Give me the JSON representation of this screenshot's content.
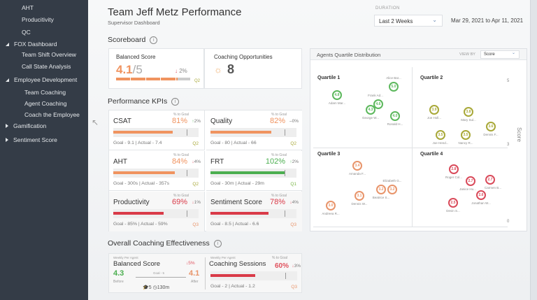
{
  "sidebar": {
    "items": [
      {
        "label": "AHT",
        "level": 2
      },
      {
        "label": "Producitivity",
        "level": 2
      },
      {
        "label": "QC",
        "level": 2
      },
      {
        "label": "FOX Dashboard",
        "level": 1,
        "state": "expanded"
      },
      {
        "label": "Team Shift Overview",
        "level": 2
      },
      {
        "label": "Call State Analysis",
        "level": 2
      },
      {
        "label": "Employee Development",
        "level": 1,
        "state": "expanded"
      },
      {
        "label": "Team Coaching",
        "level": 2
      },
      {
        "label": "Agent Coaching",
        "level": 2
      },
      {
        "label": "Coach the Employee",
        "level": 2
      },
      {
        "label": "Gamification",
        "level": 1,
        "state": "collapsed"
      },
      {
        "label": "Sentiment Score",
        "level": 1,
        "state": "collapsed"
      }
    ]
  },
  "header": {
    "title": "Team Jeff Metz Performance",
    "subtitle": "Supervisor Dashboard",
    "duration_label": "DURATION",
    "duration_value": "Last 2 Weeks",
    "date_range": "Mar 29, 2021 to  Apr 11, 2021"
  },
  "scoreboard": {
    "title": "Scoreboard",
    "info": "i",
    "balanced": {
      "label": "Balanced Score",
      "value": "4.1",
      "max": "/5",
      "change": "2%",
      "direction": "down",
      "quartile": "Q2",
      "score": 4.1,
      "out_of": 5
    },
    "coaching": {
      "label": "Coaching Opportunities",
      "value": "8",
      "icon": "lightbulb-icon"
    }
  },
  "kpis": {
    "title": "Performance KPIs",
    "info": "i",
    "pct_label": "% to Goal",
    "items": [
      {
        "name": "CSAT",
        "pct": "81%",
        "percent": 81,
        "change": "2%",
        "direction": "up",
        "goal_text": "Goal - 9.1 | Actual - 7.4",
        "quartile": "Q2",
        "color": "#f0935f"
      },
      {
        "name": "Quality",
        "pct": "82%",
        "percent": 82,
        "change": "0%",
        "direction": "flat",
        "goal_text": "Goal - 80 | Actual - 66",
        "quartile": "Q2",
        "color": "#f0935f"
      },
      {
        "name": "AHT",
        "pct": "84%",
        "percent": 84,
        "change": "4%",
        "direction": "down",
        "goal_text": "Goal - 300s | Actual - 357s",
        "quartile": "Q2",
        "color": "#f0935f"
      },
      {
        "name": "FRT",
        "pct": "102%",
        "percent": 102,
        "change": "2%",
        "direction": "up",
        "goal_text": "Goal - 30m | Actual - 29m",
        "quartile": "Q1",
        "color": "#4caf50"
      },
      {
        "name": "Productivity",
        "pct": "69%",
        "percent": 69,
        "change": "1%",
        "direction": "down",
        "goal_text": "Goal - 85% | Actual - 59%",
        "quartile": "Q3",
        "color": "#d93a48"
      },
      {
        "name": "Sentiment Score",
        "pct": "78%",
        "percent": 78,
        "change": "4%",
        "direction": "down",
        "goal_text": "Goal - 8.5 | Actual - 6.6",
        "quartile": "Q3",
        "color": "#d93a48"
      }
    ]
  },
  "coaching_effectiveness": {
    "title": "Overall Coaching Effectiveness",
    "info": "i",
    "balanced": {
      "caption": "Weekly Per Agent",
      "label": "Balanced Score",
      "change": "5%",
      "direction": "down",
      "before": "4.3",
      "before_label": "Before",
      "after": "4.1",
      "after_label": "After",
      "goal": "Goal - 5",
      "sessions": "5",
      "duration": "130m"
    },
    "sessions": {
      "caption": "Weekly Per Agent",
      "label": "Coaching Sessions",
      "pct_label": "% to Goal",
      "pct": "60%",
      "percent": 60,
      "change": "3%",
      "direction": "down",
      "goal_text": "Goal - 2 | Actual - 1.2",
      "quartile": "Q3",
      "color": "#d93a48"
    }
  },
  "quartile_panel": {
    "title": "Agents Quartile Distribution",
    "view_by_label": "VIEW BY",
    "view_by_value": "Score",
    "axis_label": "Score",
    "axis_ticks": [
      "5",
      "3",
      "0"
    ],
    "quartiles": [
      {
        "label": "Quartile 1",
        "color": "#5cb85c"
      },
      {
        "label": "Quartile 2",
        "color": "#a8a838"
      },
      {
        "label": "Quartile 3",
        "color": "#e8946a"
      },
      {
        "label": "Quartile 4",
        "color": "#d94a5a"
      }
    ],
    "agents": [
      {
        "name": "Adam Mar...",
        "score": "4.8",
        "q": 0
      },
      {
        "name": "Alice Bar...",
        "score": "5.0",
        "q": 0
      },
      {
        "name": "Frank Ad...",
        "score": "4.6",
        "q": 0
      },
      {
        "name": "George W...",
        "score": "4.3",
        "q": 0
      },
      {
        "name": "Ronald H...",
        "score": "4.0",
        "q": 0
      },
      {
        "name": "Joe Holl...",
        "score": "3.9",
        "q": 1
      },
      {
        "name": "Mary Sul...",
        "score": "3.8",
        "q": 1
      },
      {
        "name": "Dennis F...",
        "score": "3.6",
        "q": 1
      },
      {
        "name": "Joe Hend...",
        "score": "3.5",
        "q": 1
      },
      {
        "name": "Nancy R...",
        "score": "3.5",
        "q": 1
      },
      {
        "name": "Amanda F...",
        "score": "3.4",
        "q": 2
      },
      {
        "name": "Elizabeth G...",
        "score": "3.2",
        "q": 2
      },
      {
        "name": "Beatrice S...",
        "score": "3.2",
        "q": 2
      },
      {
        "name": "Dennis W...",
        "score": "3.1",
        "q": 2
      },
      {
        "name": "Andreea R...",
        "score": "3.0",
        "q": 2
      },
      {
        "name": "Roger Col...",
        "score": "2.8",
        "q": 3
      },
      {
        "name": "Janice Hu...",
        "score": "2.7",
        "q": 3
      },
      {
        "name": "Carmen B...",
        "score": "2.7",
        "q": 3
      },
      {
        "name": "Jonathan W...",
        "score": "2.6",
        "q": 3
      },
      {
        "name": "Devin S...",
        "score": "2.5",
        "q": 3
      }
    ]
  }
}
